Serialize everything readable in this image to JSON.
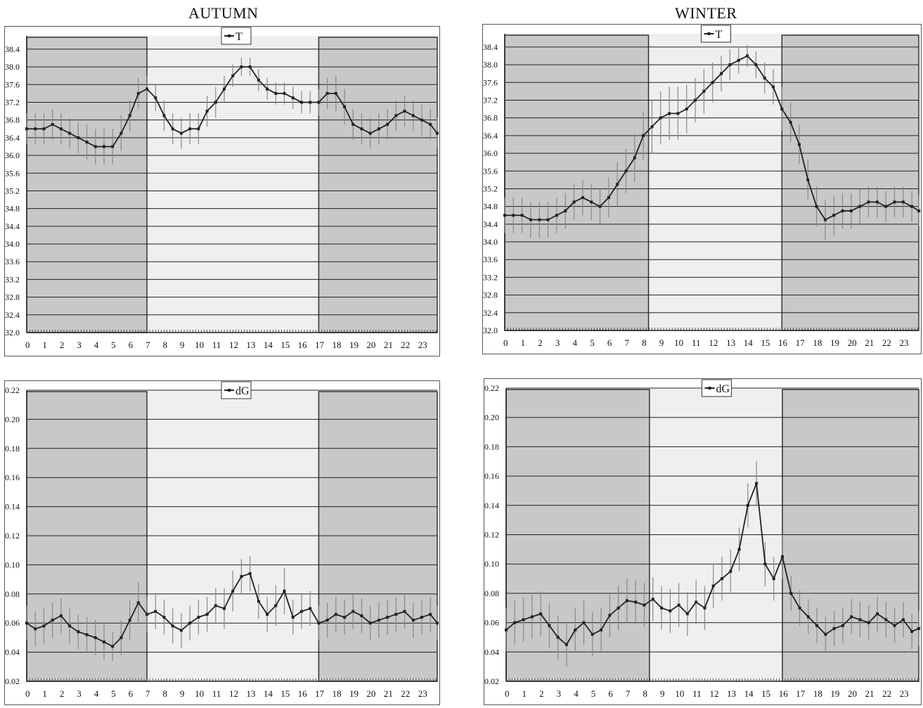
{
  "figure": {
    "columns": [
      {
        "title": "AUTUMN"
      },
      {
        "title": "WINTER"
      }
    ]
  },
  "chart_data": [
    {
      "id": "autumn-T",
      "type": "line",
      "title": "AUTUMN",
      "legend": "T",
      "legend_placement": "top-center",
      "xlim": [
        0,
        23.9
      ],
      "x_ticks": [
        0,
        1,
        2,
        3,
        4,
        5,
        6,
        7,
        8,
        9,
        10,
        11,
        12,
        13,
        14,
        15,
        16,
        17,
        18,
        19,
        20,
        21,
        22,
        23
      ],
      "ylim": [
        32.0,
        38.7
      ],
      "y_ticks": [
        "32.0",
        "32.4",
        "32.8",
        "33.2",
        "33.6",
        "34.0",
        "34.4",
        "34.8",
        "35.2",
        "35.6",
        "36.0",
        "36.4",
        "36.8",
        "37.2",
        "37.6",
        "38.0",
        "38.4"
      ],
      "grid": true,
      "shaded_x_ranges": [
        [
          0,
          7
        ],
        [
          17,
          23.9
        ]
      ],
      "series": [
        {
          "name": "T",
          "x": [
            0,
            0.5,
            1,
            1.5,
            2,
            2.5,
            3,
            3.5,
            4,
            4.5,
            5,
            5.5,
            6,
            6.5,
            7,
            7.5,
            8,
            8.5,
            9,
            9.5,
            10,
            10.5,
            11,
            11.5,
            12,
            12.5,
            13,
            13.5,
            14,
            14.5,
            15,
            15.5,
            16,
            16.5,
            17,
            17.5,
            18,
            18.5,
            19,
            19.5,
            20,
            20.5,
            21,
            21.5,
            22,
            22.5,
            23,
            23.5,
            23.9
          ],
          "y": [
            36.6,
            36.6,
            36.6,
            36.7,
            36.6,
            36.5,
            36.4,
            36.3,
            36.2,
            36.2,
            36.2,
            36.5,
            36.9,
            37.4,
            37.5,
            37.3,
            36.9,
            36.6,
            36.5,
            36.6,
            36.6,
            37.0,
            37.2,
            37.5,
            37.8,
            38.0,
            38.0,
            37.7,
            37.5,
            37.4,
            37.4,
            37.3,
            37.2,
            37.2,
            37.2,
            37.4,
            37.4,
            37.1,
            36.7,
            36.6,
            36.5,
            36.6,
            36.7,
            36.9,
            37.0,
            36.9,
            36.8,
            36.7,
            36.5
          ],
          "error": [
            0.35,
            0.35,
            0.35,
            0.35,
            0.35,
            0.35,
            0.35,
            0.4,
            0.4,
            0.4,
            0.4,
            0.4,
            0.35,
            0.35,
            0.3,
            0.3,
            0.35,
            0.35,
            0.35,
            0.35,
            0.35,
            0.35,
            0.35,
            0.3,
            0.25,
            0.2,
            0.2,
            0.25,
            0.25,
            0.25,
            0.25,
            0.25,
            0.25,
            0.25,
            0.3,
            0.35,
            0.4,
            0.4,
            0.35,
            0.35,
            0.35,
            0.35,
            0.35,
            0.35,
            0.35,
            0.35,
            0.35,
            0.35,
            0.35
          ]
        }
      ]
    },
    {
      "id": "winter-T",
      "type": "line",
      "title": "WINTER",
      "legend": "T",
      "legend_placement": "top-center",
      "xlim": [
        0,
        23.9
      ],
      "x_ticks": [
        0,
        1,
        2,
        3,
        4,
        5,
        6,
        7,
        8,
        9,
        10,
        11,
        12,
        13,
        14,
        15,
        16,
        17,
        18,
        19,
        20,
        21,
        22,
        23
      ],
      "ylim": [
        32.0,
        38.7
      ],
      "y_ticks": [
        "32.0",
        "32.4",
        "32.8",
        "33.2",
        "33.6",
        "34.0",
        "34.4",
        "34.8",
        "35.2",
        "35.6",
        "36.0",
        "36.4",
        "36.8",
        "37.2",
        "37.6",
        "38.0",
        "38.4"
      ],
      "grid": true,
      "shaded_x_ranges": [
        [
          0,
          8.3
        ],
        [
          16,
          23.9
        ]
      ],
      "series": [
        {
          "name": "T",
          "x": [
            0,
            0.5,
            1,
            1.5,
            2,
            2.5,
            3,
            3.5,
            4,
            4.5,
            5,
            5.5,
            6,
            6.5,
            7,
            7.5,
            8,
            8.5,
            9,
            9.5,
            10,
            10.5,
            11,
            11.5,
            12,
            12.5,
            13,
            13.5,
            14,
            14.5,
            15,
            15.5,
            16,
            16.5,
            17,
            17.5,
            18,
            18.5,
            19,
            19.5,
            20,
            20.5,
            21,
            21.5,
            22,
            22.5,
            23,
            23.5,
            23.9
          ],
          "y": [
            34.6,
            34.6,
            34.6,
            34.5,
            34.5,
            34.5,
            34.6,
            34.7,
            34.9,
            35.0,
            34.9,
            34.8,
            35.0,
            35.3,
            35.6,
            35.9,
            36.4,
            36.6,
            36.8,
            36.9,
            36.9,
            37.0,
            37.2,
            37.4,
            37.6,
            37.8,
            38.0,
            38.1,
            38.2,
            38.0,
            37.7,
            37.5,
            37.0,
            36.7,
            36.2,
            35.4,
            34.8,
            34.5,
            34.6,
            34.7,
            34.7,
            34.8,
            34.9,
            34.9,
            34.8,
            34.9,
            34.9,
            34.8,
            34.7
          ],
          "error": [
            0.4,
            0.4,
            0.4,
            0.4,
            0.4,
            0.4,
            0.4,
            0.4,
            0.4,
            0.4,
            0.4,
            0.4,
            0.45,
            0.5,
            0.5,
            0.55,
            0.55,
            0.6,
            0.6,
            0.6,
            0.6,
            0.55,
            0.5,
            0.5,
            0.45,
            0.4,
            0.35,
            0.3,
            0.25,
            0.3,
            0.35,
            0.4,
            0.5,
            0.45,
            0.45,
            0.45,
            0.45,
            0.45,
            0.45,
            0.4,
            0.4,
            0.4,
            0.35,
            0.35,
            0.35,
            0.35,
            0.35,
            0.35,
            0.35
          ]
        }
      ]
    },
    {
      "id": "autumn-dG",
      "type": "line",
      "legend": "dG",
      "legend_placement": "top-center",
      "xlim": [
        0,
        23.9
      ],
      "x_ticks": [
        0,
        1,
        2,
        3,
        4,
        5,
        6,
        7,
        8,
        9,
        10,
        11,
        12,
        13,
        14,
        15,
        16,
        17,
        18,
        19,
        20,
        21,
        22,
        23
      ],
      "ylim": [
        0.02,
        0.22
      ],
      "y_ticks": [
        "0.02",
        "0.04",
        "0.06",
        "0.08",
        "0.10",
        "0.12",
        "0.14",
        "0.16",
        "0.18",
        "0.20",
        "0.22"
      ],
      "grid": true,
      "shaded_x_ranges": [
        [
          0,
          7
        ],
        [
          17,
          23.9
        ]
      ],
      "series": [
        {
          "name": "dG",
          "x": [
            0,
            0.5,
            1,
            1.5,
            2,
            2.5,
            3,
            3.5,
            4,
            4.5,
            5,
            5.5,
            6,
            6.5,
            7,
            7.5,
            8,
            8.5,
            9,
            9.5,
            10,
            10.5,
            11,
            11.5,
            12,
            12.5,
            13,
            13.5,
            14,
            14.5,
            15,
            15.5,
            16,
            16.5,
            17,
            17.5,
            18,
            18.5,
            19,
            19.5,
            20,
            20.5,
            21,
            21.5,
            22,
            22.5,
            23,
            23.5,
            23.9
          ],
          "y": [
            0.06,
            0.056,
            0.058,
            0.062,
            0.065,
            0.058,
            0.054,
            0.052,
            0.05,
            0.047,
            0.044,
            0.05,
            0.062,
            0.074,
            0.066,
            0.068,
            0.064,
            0.058,
            0.055,
            0.06,
            0.064,
            0.066,
            0.072,
            0.07,
            0.082,
            0.092,
            0.094,
            0.075,
            0.066,
            0.072,
            0.082,
            0.064,
            0.068,
            0.07,
            0.06,
            0.062,
            0.066,
            0.064,
            0.068,
            0.065,
            0.06,
            0.062,
            0.064,
            0.066,
            0.068,
            0.062,
            0.064,
            0.066,
            0.06
          ],
          "error": [
            0.012,
            0.012,
            0.012,
            0.012,
            0.012,
            0.012,
            0.012,
            0.012,
            0.012,
            0.012,
            0.01,
            0.012,
            0.014,
            0.014,
            0.012,
            0.012,
            0.012,
            0.012,
            0.012,
            0.012,
            0.012,
            0.012,
            0.012,
            0.014,
            0.014,
            0.012,
            0.012,
            0.012,
            0.012,
            0.014,
            0.016,
            0.012,
            0.012,
            0.012,
            0.012,
            0.012,
            0.012,
            0.012,
            0.012,
            0.012,
            0.012,
            0.012,
            0.012,
            0.012,
            0.012,
            0.012,
            0.012,
            0.012,
            0.012
          ]
        }
      ]
    },
    {
      "id": "winter-dG",
      "type": "line",
      "legend": "dG",
      "legend_placement": "top-center",
      "xlim": [
        0,
        23.9
      ],
      "x_ticks": [
        0,
        1,
        2,
        3,
        4,
        5,
        6,
        7,
        8,
        9,
        10,
        11,
        12,
        13,
        14,
        15,
        16,
        17,
        18,
        19,
        20,
        21,
        22,
        23
      ],
      "ylim": [
        0.02,
        0.22
      ],
      "y_ticks": [
        "0.02",
        "0.04",
        "0.06",
        "0.08",
        "0.10",
        "0.12",
        "0.14",
        "0.16",
        "0.18",
        "0.20",
        "0.22"
      ],
      "grid": true,
      "shaded_x_ranges": [
        [
          0,
          8.3
        ],
        [
          16,
          23.9
        ]
      ],
      "series": [
        {
          "name": "dG",
          "x": [
            0,
            0.5,
            1,
            1.5,
            2,
            2.5,
            3,
            3.5,
            4,
            4.5,
            5,
            5.5,
            6,
            6.5,
            7,
            7.5,
            8,
            8.5,
            9,
            9.5,
            10,
            10.5,
            11,
            11.5,
            12,
            12.5,
            13,
            13.5,
            14,
            14.5,
            15,
            15.5,
            16,
            16.5,
            17,
            17.5,
            18,
            18.5,
            19,
            19.5,
            20,
            20.5,
            21,
            21.5,
            22,
            22.5,
            23,
            23.5,
            23.9
          ],
          "y": [
            0.055,
            0.06,
            0.062,
            0.064,
            0.066,
            0.058,
            0.05,
            0.045,
            0.055,
            0.06,
            0.052,
            0.055,
            0.065,
            0.07,
            0.075,
            0.074,
            0.072,
            0.076,
            0.07,
            0.068,
            0.072,
            0.066,
            0.074,
            0.07,
            0.085,
            0.09,
            0.095,
            0.11,
            0.14,
            0.155,
            0.1,
            0.09,
            0.105,
            0.08,
            0.07,
            0.064,
            0.058,
            0.052,
            0.056,
            0.058,
            0.064,
            0.062,
            0.06,
            0.066,
            0.062,
            0.058,
            0.062,
            0.054,
            0.056
          ],
          "error": [
            0.015,
            0.015,
            0.015,
            0.015,
            0.015,
            0.015,
            0.015,
            0.015,
            0.015,
            0.015,
            0.015,
            0.015,
            0.015,
            0.015,
            0.015,
            0.015,
            0.015,
            0.015,
            0.015,
            0.015,
            0.015,
            0.015,
            0.015,
            0.015,
            0.015,
            0.015,
            0.015,
            0.015,
            0.015,
            0.015,
            0.015,
            0.015,
            0.015,
            0.012,
            0.012,
            0.012,
            0.012,
            0.012,
            0.012,
            0.012,
            0.012,
            0.012,
            0.012,
            0.012,
            0.012,
            0.012,
            0.012,
            0.012,
            0.012
          ]
        }
      ]
    }
  ]
}
